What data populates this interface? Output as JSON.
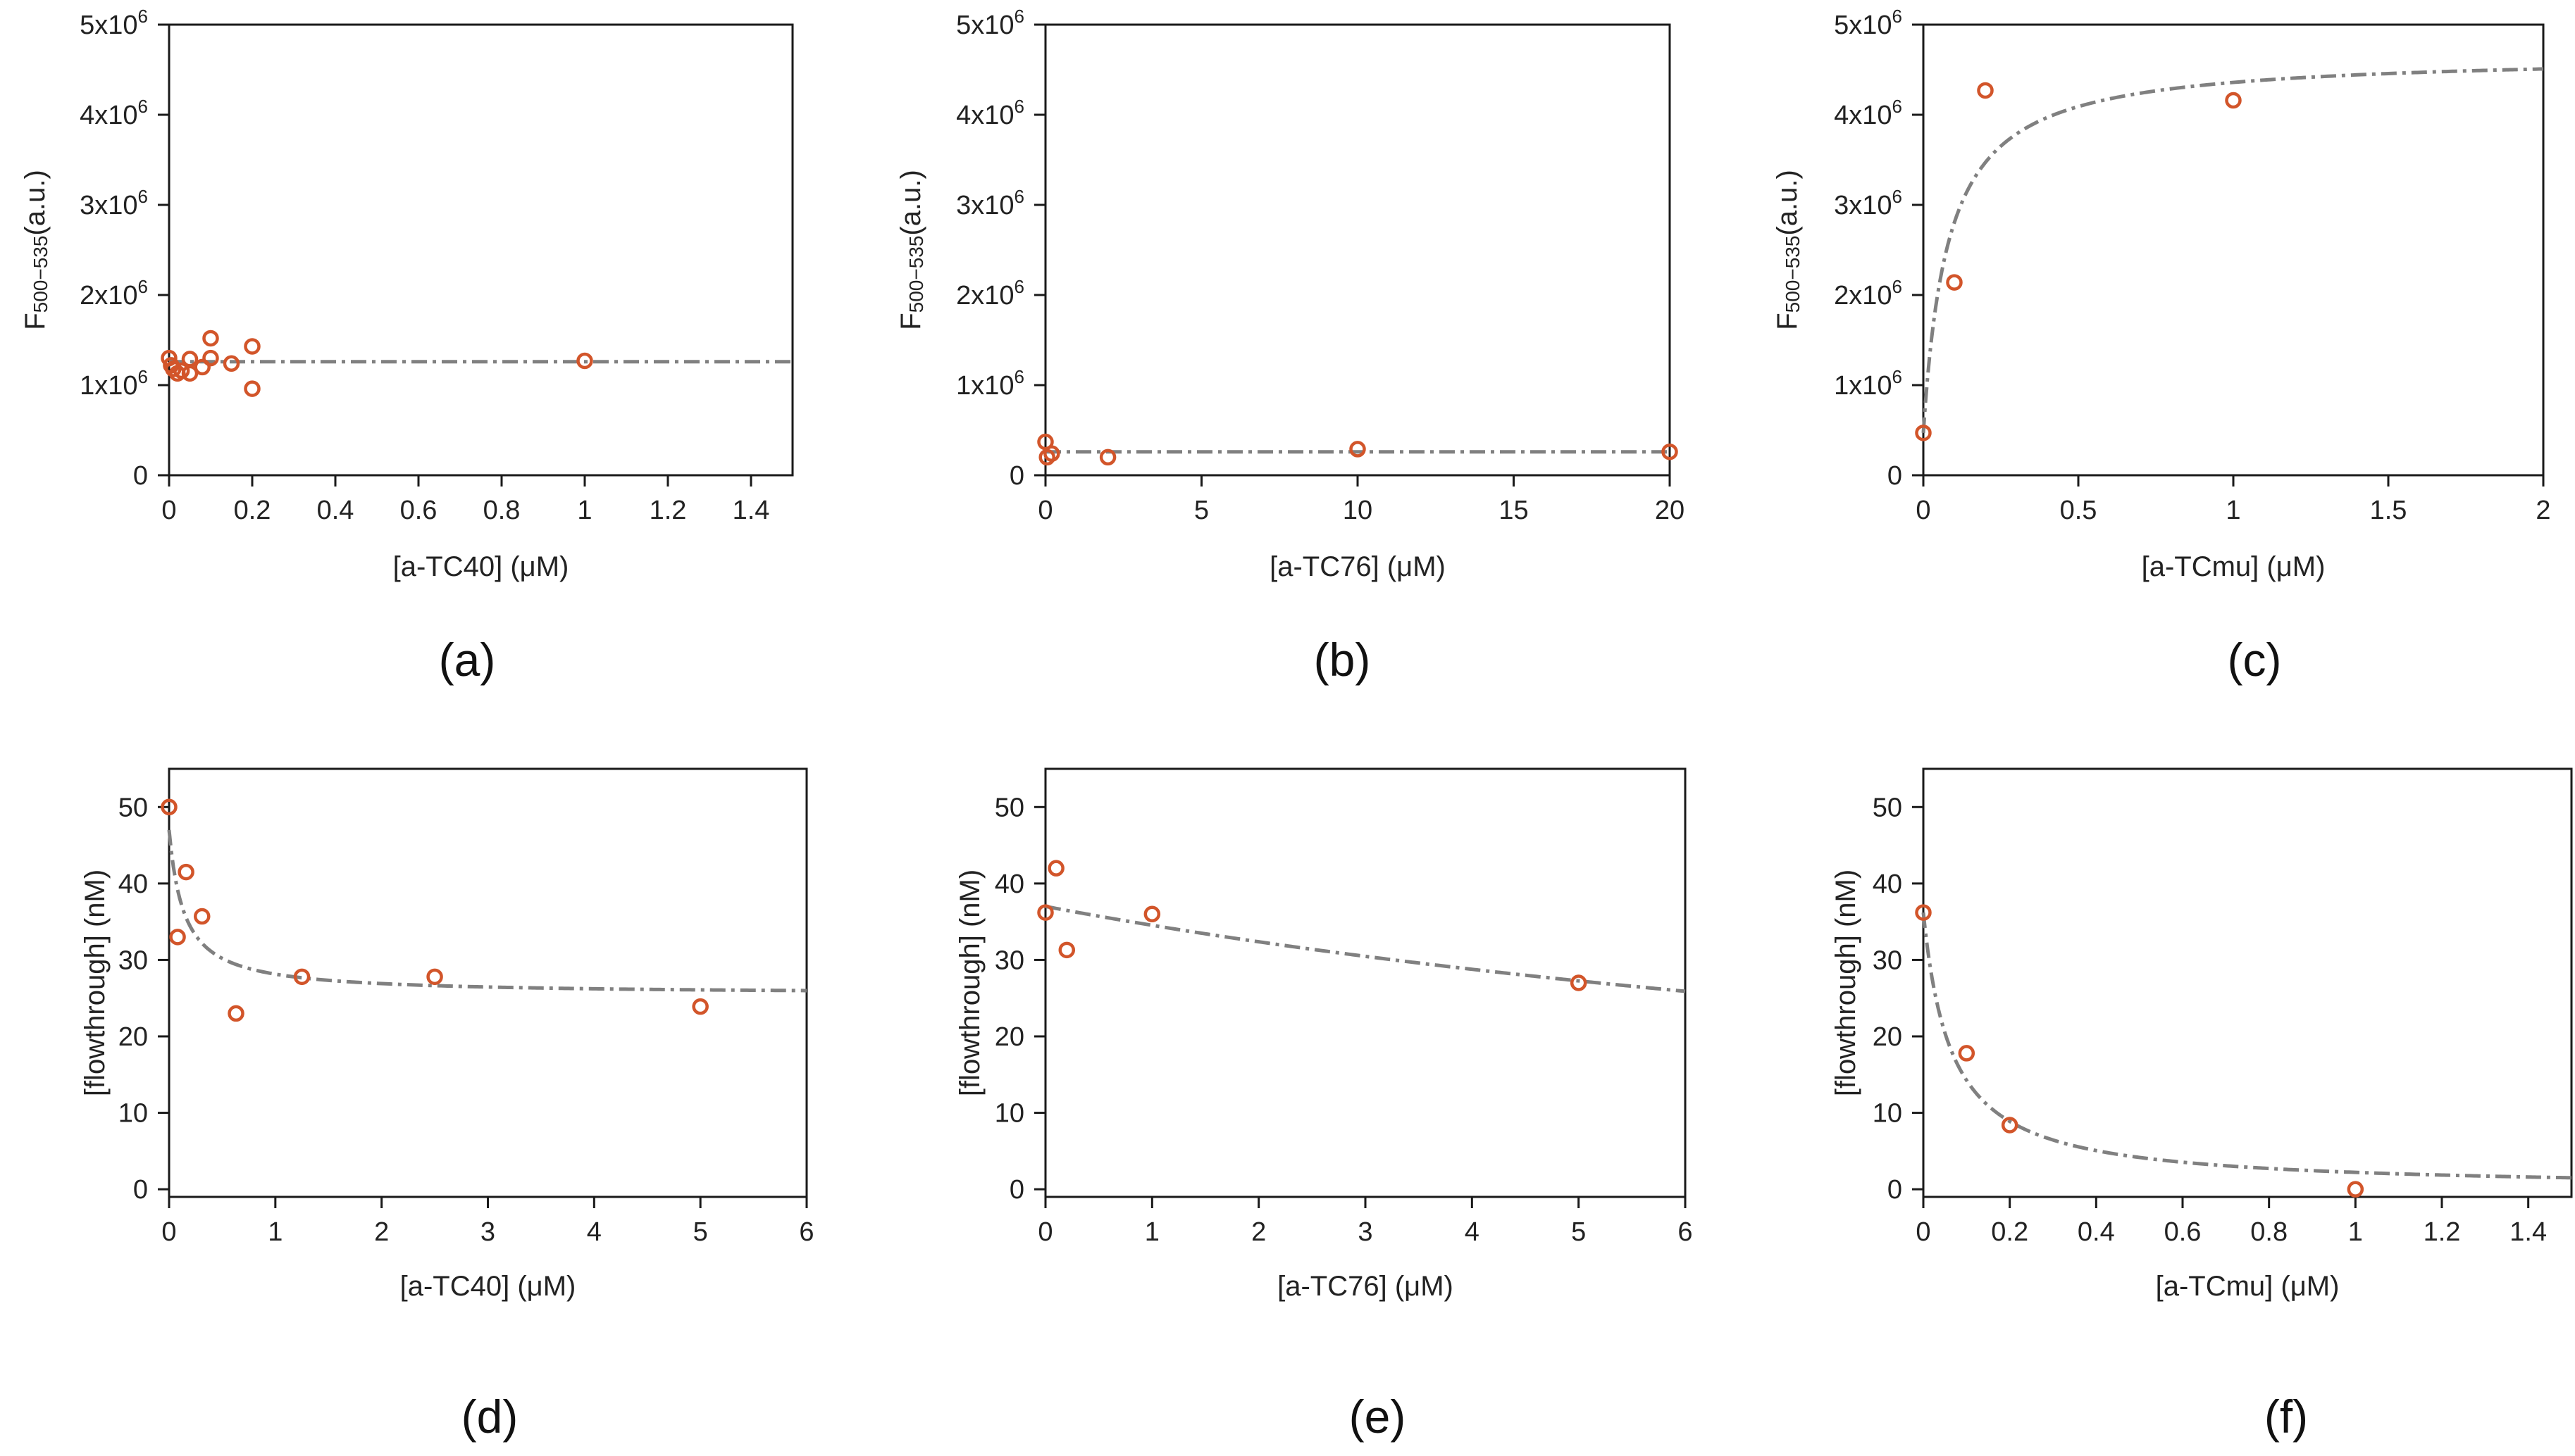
{
  "chart_data": [
    {
      "id": "a",
      "type": "scatter",
      "caption": "(a)",
      "xlabel": "[a-TC40] (μM)",
      "ylabel": {
        "main": "F",
        "sub": "500−535",
        "suffix": "(a.u.)"
      },
      "xlim": [
        0,
        1.5
      ],
      "ylim": [
        0,
        5000000
      ],
      "xticks": [
        {
          "v": 0,
          "label": "0"
        },
        {
          "v": 0.2,
          "label": "0.2"
        },
        {
          "v": 0.4,
          "label": "0.4"
        },
        {
          "v": 0.6,
          "label": "0.6"
        },
        {
          "v": 0.8,
          "label": "0.8"
        },
        {
          "v": 1,
          "label": "1"
        },
        {
          "v": 1.2,
          "label": "1.2"
        },
        {
          "v": 1.4,
          "label": "1.4"
        }
      ],
      "yticks": [
        {
          "v": 0,
          "base": "0",
          "exp": ""
        },
        {
          "v": 1000000,
          "base": "1x10",
          "exp": "6"
        },
        {
          "v": 2000000,
          "base": "2x10",
          "exp": "6"
        },
        {
          "v": 3000000,
          "base": "3x10",
          "exp": "6"
        },
        {
          "v": 4000000,
          "base": "4x10",
          "exp": "6"
        },
        {
          "v": 5000000,
          "base": "5x10",
          "exp": "6"
        }
      ],
      "points": [
        [
          0,
          1300000
        ],
        [
          0.005,
          1220000
        ],
        [
          0.01,
          1180000
        ],
        [
          0.02,
          1130000
        ],
        [
          0.03,
          1160000
        ],
        [
          0.05,
          1290000
        ],
        [
          0.05,
          1130000
        ],
        [
          0.08,
          1200000
        ],
        [
          0.1,
          1520000
        ],
        [
          0.1,
          1300000
        ],
        [
          0.15,
          1240000
        ],
        [
          0.2,
          1430000
        ],
        [
          0.2,
          960000
        ],
        [
          1.0,
          1270000
        ]
      ],
      "fit": {
        "model": "constant",
        "c": 1260000
      }
    },
    {
      "id": "b",
      "type": "scatter",
      "caption": "(b)",
      "xlabel": "[a-TC76] (μM)",
      "ylabel": {
        "main": "F",
        "sub": "500−535",
        "suffix": "(a.u.)"
      },
      "xlim": [
        0,
        20
      ],
      "ylim": [
        0,
        5000000
      ],
      "xticks": [
        {
          "v": 0,
          "label": "0"
        },
        {
          "v": 5,
          "label": "5"
        },
        {
          "v": 10,
          "label": "10"
        },
        {
          "v": 15,
          "label": "15"
        },
        {
          "v": 20,
          "label": "20"
        }
      ],
      "yticks": [
        {
          "v": 0,
          "base": "0",
          "exp": ""
        },
        {
          "v": 1000000,
          "base": "1x10",
          "exp": "6"
        },
        {
          "v": 2000000,
          "base": "2x10",
          "exp": "6"
        },
        {
          "v": 3000000,
          "base": "3x10",
          "exp": "6"
        },
        {
          "v": 4000000,
          "base": "4x10",
          "exp": "6"
        },
        {
          "v": 5000000,
          "base": "5x10",
          "exp": "6"
        }
      ],
      "points": [
        [
          0,
          370000
        ],
        [
          0.05,
          200000
        ],
        [
          0.2,
          240000
        ],
        [
          2,
          200000
        ],
        [
          10,
          290000
        ],
        [
          20,
          260000
        ]
      ],
      "fit": {
        "model": "constant",
        "c": 260000
      }
    },
    {
      "id": "c",
      "type": "scatter",
      "caption": "(c)",
      "xlabel": "[a-TCmu] (μM)",
      "ylabel": {
        "main": "F",
        "sub": "500−535",
        "suffix": "(a.u.)"
      },
      "xlim": [
        0,
        2
      ],
      "ylim": [
        0,
        5000000
      ],
      "xticks": [
        {
          "v": 0,
          "label": "0"
        },
        {
          "v": 0.5,
          "label": "0.5"
        },
        {
          "v": 1,
          "label": "1"
        },
        {
          "v": 1.5,
          "label": "1.5"
        },
        {
          "v": 2,
          "label": "2"
        }
      ],
      "yticks": [
        {
          "v": 0,
          "base": "0",
          "exp": ""
        },
        {
          "v": 1000000,
          "base": "1x10",
          "exp": "6"
        },
        {
          "v": 2000000,
          "base": "2x10",
          "exp": "6"
        },
        {
          "v": 3000000,
          "base": "3x10",
          "exp": "6"
        },
        {
          "v": 4000000,
          "base": "4x10",
          "exp": "6"
        },
        {
          "v": 5000000,
          "base": "5x10",
          "exp": "6"
        }
      ],
      "points": [
        [
          0,
          470000
        ],
        [
          0.1,
          2140000
        ],
        [
          0.2,
          4270000
        ],
        [
          1.0,
          4160000
        ]
      ],
      "fit": {
        "model": "binding_increase",
        "y0": 470000,
        "ymax": 4200000,
        "k": 0.08
      }
    },
    {
      "id": "d",
      "type": "scatter",
      "caption": "(d)",
      "xlabel": "[a-TC40] (μM)",
      "ylabel": {
        "main": "[flowthrough] (nM)",
        "sub": "",
        "suffix": ""
      },
      "xlim": [
        0,
        6
      ],
      "ylim": [
        -1,
        55
      ],
      "xticks": [
        {
          "v": 0,
          "label": "0"
        },
        {
          "v": 1,
          "label": "1"
        },
        {
          "v": 2,
          "label": "2"
        },
        {
          "v": 3,
          "label": "3"
        },
        {
          "v": 4,
          "label": "4"
        },
        {
          "v": 5,
          "label": "5"
        },
        {
          "v": 6,
          "label": "6"
        }
      ],
      "yticks": [
        {
          "v": 0,
          "base": "0",
          "exp": ""
        },
        {
          "v": 10,
          "base": "10",
          "exp": ""
        },
        {
          "v": 20,
          "base": "20",
          "exp": ""
        },
        {
          "v": 30,
          "base": "30",
          "exp": ""
        },
        {
          "v": 40,
          "base": "40",
          "exp": ""
        },
        {
          "v": 50,
          "base": "50",
          "exp": ""
        }
      ],
      "points": [
        [
          0,
          50
        ],
        [
          0.08,
          33
        ],
        [
          0.16,
          41.5
        ],
        [
          0.31,
          35.7
        ],
        [
          0.63,
          23
        ],
        [
          1.25,
          27.8
        ],
        [
          2.5,
          27.8
        ],
        [
          5,
          23.9
        ]
      ],
      "fit": {
        "model": "binding_decrease",
        "y0": 47,
        "amp": 21.5,
        "k": 0.14
      }
    },
    {
      "id": "e",
      "type": "scatter",
      "caption": "(e)",
      "xlabel": "[a-TC76] (μM)",
      "ylabel": {
        "main": "[flowthrough] (nM)",
        "sub": "",
        "suffix": ""
      },
      "xlim": [
        0,
        6
      ],
      "ylim": [
        -1,
        55
      ],
      "xticks": [
        {
          "v": 0,
          "label": "0"
        },
        {
          "v": 1,
          "label": "1"
        },
        {
          "v": 2,
          "label": "2"
        },
        {
          "v": 3,
          "label": "3"
        },
        {
          "v": 4,
          "label": "4"
        },
        {
          "v": 5,
          "label": "5"
        },
        {
          "v": 6,
          "label": "6"
        }
      ],
      "yticks": [
        {
          "v": 0,
          "base": "0",
          "exp": ""
        },
        {
          "v": 10,
          "base": "10",
          "exp": ""
        },
        {
          "v": 20,
          "base": "20",
          "exp": ""
        },
        {
          "v": 30,
          "base": "30",
          "exp": ""
        },
        {
          "v": 40,
          "base": "40",
          "exp": ""
        },
        {
          "v": 50,
          "base": "50",
          "exp": ""
        }
      ],
      "points": [
        [
          0,
          36.2
        ],
        [
          0.1,
          42
        ],
        [
          0.2,
          31.3
        ],
        [
          1,
          36
        ],
        [
          5,
          27
        ]
      ],
      "fit": {
        "model": "binding_decrease",
        "y0": 37,
        "amp": 37,
        "k": 14
      }
    },
    {
      "id": "f",
      "type": "scatter",
      "caption": "(f)",
      "xlabel": "[a-TCmu] (μM)",
      "ylabel": {
        "main": "[flowthrough] (nM)",
        "sub": "",
        "suffix": ""
      },
      "xlim": [
        0,
        1.5
      ],
      "ylim": [
        -1,
        55
      ],
      "xticks": [
        {
          "v": 0,
          "label": "0"
        },
        {
          "v": 0.2,
          "label": "0.2"
        },
        {
          "v": 0.4,
          "label": "0.4"
        },
        {
          "v": 0.6,
          "label": "0.6"
        },
        {
          "v": 0.8,
          "label": "0.8"
        },
        {
          "v": 1,
          "label": "1"
        },
        {
          "v": 1.2,
          "label": "1.2"
        },
        {
          "v": 1.4,
          "label": "1.4"
        }
      ],
      "yticks": [
        {
          "v": 0,
          "base": "0",
          "exp": ""
        },
        {
          "v": 10,
          "base": "10",
          "exp": ""
        },
        {
          "v": 20,
          "base": "20",
          "exp": ""
        },
        {
          "v": 30,
          "base": "30",
          "exp": ""
        },
        {
          "v": 40,
          "base": "40",
          "exp": ""
        },
        {
          "v": 50,
          "base": "50",
          "exp": ""
        }
      ],
      "points": [
        [
          0,
          36.2
        ],
        [
          0.1,
          17.8
        ],
        [
          0.2,
          8.4
        ],
        [
          1,
          0
        ]
      ],
      "fit": {
        "model": "binding_decrease",
        "y0": 36.2,
        "amp": 36.2,
        "k": 0.065
      }
    }
  ]
}
